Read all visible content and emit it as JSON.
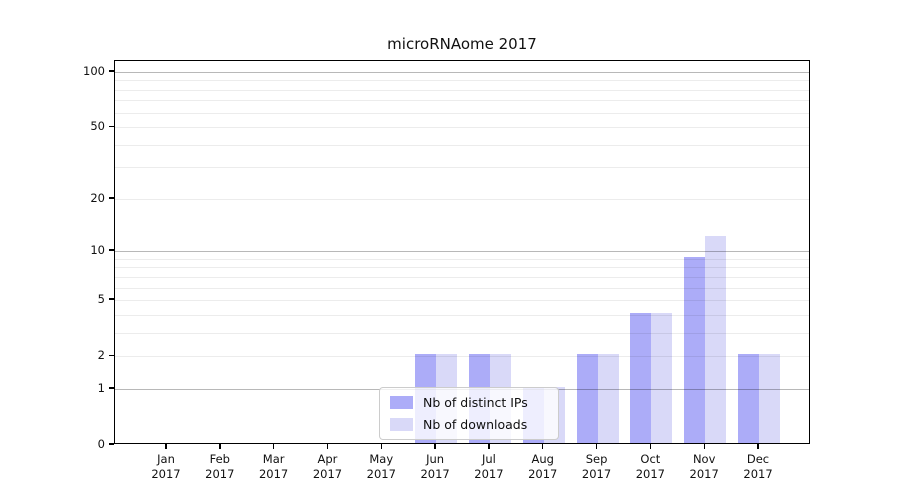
{
  "chart_data": {
    "type": "bar",
    "title": "microRNAome 2017",
    "categories": [
      "Jan",
      "Feb",
      "Mar",
      "Apr",
      "May",
      "Jun",
      "Jul",
      "Aug",
      "Sep",
      "Oct",
      "Nov",
      "Dec"
    ],
    "category_year": "2017",
    "series": [
      {
        "name": "Nb of distinct IPs",
        "key": "distinct-ips",
        "color": "#acacf8",
        "values": [
          0,
          0,
          0,
          0,
          0,
          2,
          2,
          1,
          2,
          4,
          9,
          2
        ]
      },
      {
        "name": "Nb of downloads",
        "key": "downloads",
        "color": "#d9d9f8",
        "values": [
          0,
          0,
          0,
          0,
          0,
          2,
          2,
          1,
          2,
          4,
          12,
          2
        ]
      }
    ],
    "y_axis": {
      "scale": "log1p",
      "ticks": [
        0,
        1,
        2,
        5,
        10,
        20,
        50,
        100
      ],
      "major_gridlines": [
        1,
        10,
        100
      ],
      "minor_gridlines": [
        2,
        3,
        4,
        5,
        6,
        7,
        8,
        9,
        20,
        30,
        40,
        50,
        60,
        70,
        80,
        90
      ]
    },
    "x_axis": {
      "tick_label_year": "2017"
    },
    "legend": {
      "position": "lower-center"
    },
    "colors": {
      "minor_grid": "#ececec",
      "major_grid": "#b3b3b3",
      "spine": "#000000"
    }
  }
}
